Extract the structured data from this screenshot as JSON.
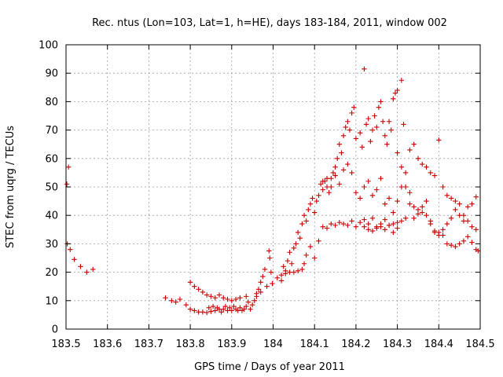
{
  "chart_data": {
    "type": "scatter",
    "title": "Rec. ntus (Lon=103, Lat=1, h=HE), days 183-184, 2011, window 002",
    "xlabel": "GPS time / Days of year 2011",
    "ylabel": "STEC from uqrg / TECUs",
    "xlim": [
      183.5,
      184.5
    ],
    "ylim": [
      0,
      100
    ],
    "xticks": [
      183.5,
      183.6,
      183.7,
      183.8,
      183.9,
      184.0,
      184.1,
      184.2,
      184.3,
      184.4,
      184.5
    ],
    "xtick_labels": [
      "183.5",
      "183.6",
      "183.7",
      "183.8",
      "183.9",
      "184",
      "184.1",
      "184.2",
      "184.3",
      "184.4",
      "184.5"
    ],
    "yticks": [
      0,
      10,
      20,
      30,
      40,
      50,
      60,
      70,
      80,
      90,
      100
    ],
    "ytick_labels": [
      "0",
      "10",
      "20",
      "30",
      "40",
      "50",
      "60",
      "70",
      "80",
      "90",
      "100"
    ],
    "grid": true,
    "marker": "+",
    "color": "#cc0000",
    "points": [
      [
        183.502,
        51
      ],
      [
        183.506,
        57
      ],
      [
        183.503,
        30
      ],
      [
        183.51,
        28
      ],
      [
        183.52,
        24.5
      ],
      [
        183.535,
        22
      ],
      [
        183.55,
        20
      ],
      [
        183.565,
        21
      ],
      [
        183.74,
        11
      ],
      [
        183.755,
        10
      ],
      [
        183.765,
        9.5
      ],
      [
        183.775,
        10.5
      ],
      [
        183.79,
        8.5
      ],
      [
        183.8,
        16.5
      ],
      [
        183.81,
        15
      ],
      [
        183.82,
        14
      ],
      [
        183.83,
        13
      ],
      [
        183.84,
        12
      ],
      [
        183.85,
        11.5
      ],
      [
        183.86,
        11
      ],
      [
        183.87,
        12
      ],
      [
        183.88,
        11
      ],
      [
        183.89,
        10.5
      ],
      [
        183.9,
        10
      ],
      [
        183.91,
        10.5
      ],
      [
        183.92,
        11
      ],
      [
        183.935,
        11.5
      ],
      [
        183.8,
        7
      ],
      [
        183.81,
        6.5
      ],
      [
        183.82,
        6
      ],
      [
        183.83,
        6
      ],
      [
        183.84,
        5.8
      ],
      [
        183.845,
        7.5
      ],
      [
        183.85,
        6.2
      ],
      [
        183.855,
        8
      ],
      [
        183.86,
        6.5
      ],
      [
        183.865,
        7.5
      ],
      [
        183.87,
        7
      ],
      [
        183.875,
        6
      ],
      [
        183.88,
        7
      ],
      [
        183.885,
        8
      ],
      [
        183.89,
        6.5
      ],
      [
        183.895,
        7.5
      ],
      [
        183.9,
        6.5
      ],
      [
        183.905,
        8
      ],
      [
        183.91,
        7
      ],
      [
        183.915,
        6.5
      ],
      [
        183.92,
        7.5
      ],
      [
        183.925,
        6.5
      ],
      [
        183.93,
        7
      ],
      [
        183.935,
        8
      ],
      [
        183.94,
        9.5
      ],
      [
        183.945,
        7
      ],
      [
        183.95,
        8.5
      ],
      [
        183.955,
        10
      ],
      [
        183.96,
        12.5
      ],
      [
        183.965,
        14
      ],
      [
        183.97,
        16.5
      ],
      [
        183.975,
        18.5
      ],
      [
        183.98,
        21
      ],
      [
        183.985,
        15
      ],
      [
        183.99,
        27.5
      ],
      [
        183.992,
        25
      ],
      [
        183.995,
        20
      ],
      [
        183.998,
        16
      ],
      [
        183.96,
        11.5
      ],
      [
        183.97,
        13
      ],
      [
        184.02,
        19
      ],
      [
        184.025,
        22
      ],
      [
        184.03,
        20.5
      ],
      [
        184.035,
        24
      ],
      [
        184.04,
        27
      ],
      [
        184.045,
        23
      ],
      [
        184.05,
        28.5
      ],
      [
        184.055,
        30
      ],
      [
        184.06,
        34
      ],
      [
        184.065,
        32
      ],
      [
        184.07,
        37
      ],
      [
        184.075,
        40
      ],
      [
        184.08,
        38
      ],
      [
        184.085,
        42
      ],
      [
        184.09,
        44
      ],
      [
        184.095,
        46
      ],
      [
        184.1,
        41
      ],
      [
        184.105,
        45
      ],
      [
        184.11,
        47
      ],
      [
        184.115,
        51
      ],
      [
        184.12,
        49
      ],
      [
        184.125,
        52
      ],
      [
        184.13,
        50
      ],
      [
        184.135,
        48
      ],
      [
        184.14,
        53
      ],
      [
        184.145,
        55
      ],
      [
        184.15,
        57
      ],
      [
        184.155,
        60
      ],
      [
        184.16,
        65
      ],
      [
        184.165,
        62
      ],
      [
        184.17,
        68
      ],
      [
        184.175,
        71
      ],
      [
        184.18,
        73
      ],
      [
        184.185,
        70
      ],
      [
        184.19,
        76
      ],
      [
        184.195,
        78
      ],
      [
        184.2,
        67
      ],
      [
        184.21,
        69
      ],
      [
        184.215,
        64
      ],
      [
        184.22,
        91.5
      ],
      [
        184.225,
        72
      ],
      [
        184.23,
        74
      ],
      [
        184.235,
        66
      ],
      [
        184.24,
        70
      ],
      [
        184.245,
        75
      ],
      [
        184.25,
        71
      ],
      [
        184.255,
        78
      ],
      [
        184.26,
        80
      ],
      [
        184.265,
        73
      ],
      [
        184.27,
        68
      ],
      [
        184.275,
        65
      ],
      [
        184.28,
        73
      ],
      [
        184.285,
        70
      ],
      [
        184.29,
        81
      ],
      [
        184.295,
        83
      ],
      [
        184.3,
        84
      ],
      [
        184.31,
        87.5
      ],
      [
        184.315,
        72
      ],
      [
        184.01,
        18
      ],
      [
        184.02,
        17
      ],
      [
        184.03,
        19.5
      ],
      [
        184.04,
        20
      ],
      [
        184.05,
        20
      ],
      [
        184.06,
        20.5
      ],
      [
        184.07,
        21
      ],
      [
        184.075,
        23
      ],
      [
        184.08,
        26
      ],
      [
        184.09,
        29
      ],
      [
        184.1,
        25
      ],
      [
        184.11,
        31
      ],
      [
        184.12,
        36
      ],
      [
        184.13,
        35.5
      ],
      [
        184.14,
        37
      ],
      [
        184.15,
        36.5
      ],
      [
        184.16,
        37.5
      ],
      [
        184.17,
        37
      ],
      [
        184.18,
        36.5
      ],
      [
        184.19,
        38
      ],
      [
        184.2,
        36
      ],
      [
        184.21,
        37.5
      ],
      [
        184.22,
        38.5
      ],
      [
        184.23,
        37
      ],
      [
        184.24,
        39
      ],
      [
        184.25,
        36
      ],
      [
        184.26,
        37
      ],
      [
        184.27,
        38.5
      ],
      [
        184.28,
        36.5
      ],
      [
        184.29,
        37
      ],
      [
        184.3,
        37.5
      ],
      [
        184.31,
        38
      ],
      [
        184.32,
        39
      ],
      [
        184.12,
        52
      ],
      [
        184.13,
        53
      ],
      [
        184.14,
        50
      ],
      [
        184.15,
        54
      ],
      [
        184.16,
        51
      ],
      [
        184.17,
        56
      ],
      [
        184.18,
        58
      ],
      [
        184.19,
        55
      ],
      [
        184.2,
        48
      ],
      [
        184.21,
        46
      ],
      [
        184.22,
        50
      ],
      [
        184.23,
        52
      ],
      [
        184.24,
        47
      ],
      [
        184.25,
        49
      ],
      [
        184.26,
        53
      ],
      [
        184.27,
        44
      ],
      [
        184.28,
        46
      ],
      [
        184.29,
        41
      ],
      [
        184.3,
        45
      ],
      [
        184.31,
        50
      ],
      [
        184.32,
        55
      ],
      [
        184.33,
        63
      ],
      [
        184.34,
        65
      ],
      [
        184.35,
        60
      ],
      [
        184.36,
        58
      ],
      [
        184.37,
        57
      ],
      [
        184.38,
        55
      ],
      [
        184.39,
        54
      ],
      [
        184.3,
        62
      ],
      [
        184.31,
        57
      ],
      [
        184.32,
        50
      ],
      [
        184.33,
        48
      ],
      [
        184.34,
        43
      ],
      [
        184.35,
        42
      ],
      [
        184.36,
        41
      ],
      [
        184.37,
        40
      ],
      [
        184.38,
        38
      ],
      [
        184.39,
        34
      ],
      [
        184.4,
        33
      ],
      [
        184.41,
        35
      ],
      [
        184.42,
        37
      ],
      [
        184.43,
        39
      ],
      [
        184.44,
        42
      ],
      [
        184.45,
        40
      ],
      [
        184.46,
        38
      ],
      [
        184.47,
        43
      ],
      [
        184.48,
        44
      ],
      [
        184.49,
        46.5
      ],
      [
        184.4,
        66.5
      ],
      [
        184.41,
        50
      ],
      [
        184.42,
        47
      ],
      [
        184.43,
        46
      ],
      [
        184.44,
        45
      ],
      [
        184.45,
        44
      ],
      [
        184.46,
        40
      ],
      [
        184.47,
        38
      ],
      [
        184.48,
        36
      ],
      [
        184.49,
        35
      ],
      [
        184.39,
        34.5
      ],
      [
        184.4,
        34
      ],
      [
        184.41,
        33
      ],
      [
        184.42,
        30
      ],
      [
        184.43,
        29.5
      ],
      [
        184.44,
        29
      ],
      [
        184.45,
        30
      ],
      [
        184.46,
        31
      ],
      [
        184.47,
        32.5
      ],
      [
        184.48,
        30.5
      ],
      [
        184.49,
        28
      ],
      [
        184.495,
        27.5
      ],
      [
        184.22,
        36
      ],
      [
        184.23,
        35
      ],
      [
        184.24,
        34.5
      ],
      [
        184.25,
        35.5
      ],
      [
        184.26,
        36
      ],
      [
        184.27,
        35
      ],
      [
        184.28,
        36.5
      ],
      [
        184.29,
        34
      ],
      [
        184.3,
        35.5
      ],
      [
        184.33,
        44
      ],
      [
        184.34,
        39
      ],
      [
        184.35,
        40.5
      ],
      [
        184.36,
        43
      ],
      [
        184.37,
        45
      ],
      [
        184.38,
        37
      ]
    ]
  }
}
